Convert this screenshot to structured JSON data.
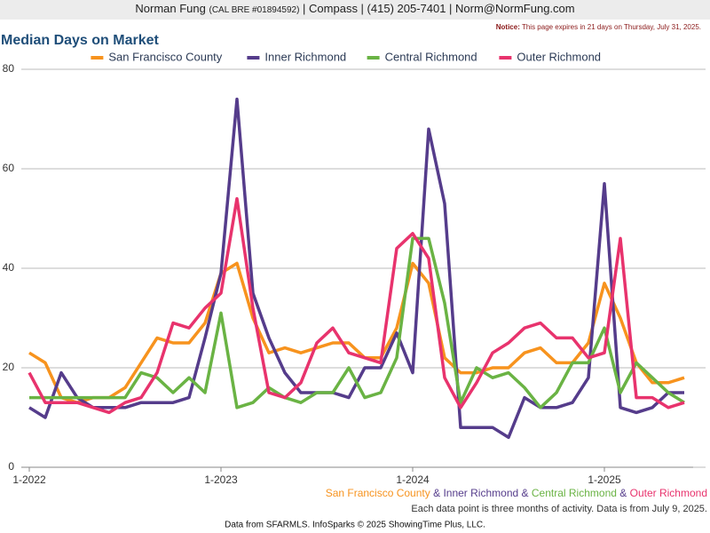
{
  "header": {
    "name": "Norman Fung",
    "license": "(CAL BRE #01894592)",
    "contact": "| Compass | (415) 205-7401 | Norm@NormFung.com",
    "notice_label": "Notice:",
    "notice": "This page expires in 21 days on Thursday, July 31, 2025."
  },
  "chart_data": {
    "type": "line",
    "title": "Median Days on Market",
    "categories": [
      "1-2022",
      null,
      null,
      null,
      null,
      null,
      null,
      null,
      null,
      null,
      null,
      null,
      "1-2023",
      null,
      null,
      null,
      null,
      null,
      null,
      null,
      null,
      null,
      null,
      null,
      "1-2024",
      null,
      null,
      null,
      null,
      null,
      null,
      null,
      null,
      null,
      null,
      null,
      "1-2025",
      null,
      null,
      null,
      null,
      null
    ],
    "series": [
      {
        "name": "San Francisco County",
        "color": "#f7931e",
        "values": [
          23,
          21,
          14,
          13,
          14,
          14,
          16,
          21,
          26,
          25,
          25,
          29,
          39,
          41,
          30,
          23,
          24,
          23,
          24,
          25,
          25,
          22,
          22,
          28,
          41,
          37,
          22,
          19,
          19,
          20,
          20,
          23,
          24,
          21,
          21,
          25,
          37,
          30,
          21,
          17,
          17,
          18
        ]
      },
      {
        "name": "Inner Richmond",
        "color": "#553c8b",
        "values": [
          12,
          10,
          19,
          14,
          12,
          12,
          12,
          13,
          13,
          13,
          14,
          26,
          39,
          74,
          35,
          26,
          19,
          15,
          15,
          15,
          14,
          20,
          20,
          27,
          19,
          68,
          53,
          8,
          8,
          8,
          6,
          14,
          12,
          12,
          13,
          18,
          57,
          12,
          11,
          12,
          15,
          15
        ]
      },
      {
        "name": "Central Richmond",
        "color": "#6ab344",
        "values": [
          14,
          14,
          14,
          14,
          14,
          14,
          14,
          19,
          18,
          15,
          18,
          15,
          31,
          12,
          13,
          16,
          14,
          13,
          15,
          15,
          20,
          14,
          15,
          22,
          46,
          46,
          33,
          13,
          20,
          18,
          19,
          16,
          12,
          15,
          21,
          21,
          28,
          15,
          21,
          18,
          15,
          13
        ]
      },
      {
        "name": "Outer Richmond",
        "color": "#e8336d",
        "values": [
          19,
          13,
          13,
          13,
          12,
          11,
          13,
          14,
          19,
          29,
          28,
          32,
          35,
          54,
          32,
          15,
          14,
          17,
          25,
          28,
          23,
          22,
          21,
          44,
          47,
          42,
          18,
          12,
          17,
          23,
          25,
          28,
          29,
          26,
          26,
          22,
          23,
          46,
          14,
          14,
          12,
          13
        ]
      }
    ],
    "ylim": [
      0,
      80
    ],
    "yticks": [
      0,
      20,
      40,
      60,
      80
    ],
    "grid": true,
    "legend": "top",
    "legend_separator": "&",
    "note": "Each data point is three months of activity. Data is from July 9, 2025.",
    "source": "Data from SFARMLS. InfoSparks © 2025 ShowingTime Plus, LLC."
  }
}
